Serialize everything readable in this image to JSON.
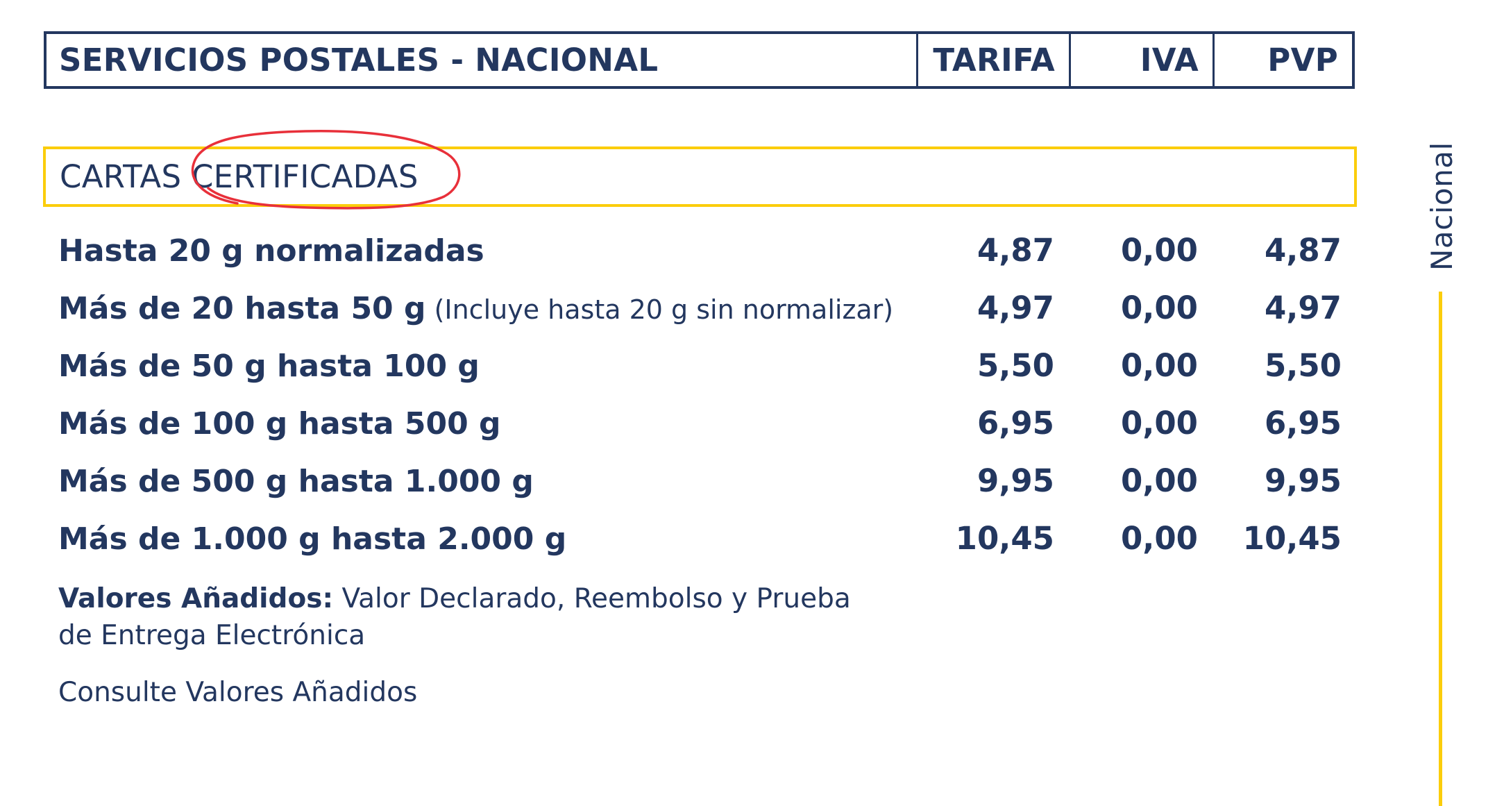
{
  "header": {
    "title": "SERVICIOS POSTALES - NACIONAL",
    "col_tarifa": "TARIFA",
    "col_iva": "IVA",
    "col_pvp": "PVP"
  },
  "section": {
    "title": "CARTAS CERTIFICADAS"
  },
  "rows": [
    {
      "label": "Hasta 20 g normalizadas",
      "note": "",
      "tarifa": "4,87",
      "iva": "0,00",
      "pvp": "4,87"
    },
    {
      "label": "Más de 20 hasta 50 g",
      "note": " (Incluye hasta 20 g sin normalizar)",
      "tarifa": "4,97",
      "iva": "0,00",
      "pvp": "4,97"
    },
    {
      "label": "Más de 50 g hasta 100 g",
      "note": "",
      "tarifa": "5,50",
      "iva": "0,00",
      "pvp": "5,50"
    },
    {
      "label": "Más de 100 g hasta 500 g",
      "note": "",
      "tarifa": "6,95",
      "iva": "0,00",
      "pvp": "6,95"
    },
    {
      "label": "Más de 500 g hasta 1.000 g",
      "note": "",
      "tarifa": "9,95",
      "iva": "0,00",
      "pvp": "9,95"
    },
    {
      "label": "Más de 1.000 g hasta 2.000 g",
      "note": "",
      "tarifa": "10,45",
      "iva": "0,00",
      "pvp": "10,45"
    }
  ],
  "valores": {
    "label": "Valores Añadidos:",
    "text": " Valor Declarado, Reembolso y Prueba de Entrega Electrónica"
  },
  "consulte": "Consulte Valores Añadidos",
  "side": {
    "label": "Nacional"
  },
  "colors": {
    "navy": "#23375f",
    "yellow": "#fbcd0b",
    "annotation_red": "#e8303a"
  }
}
